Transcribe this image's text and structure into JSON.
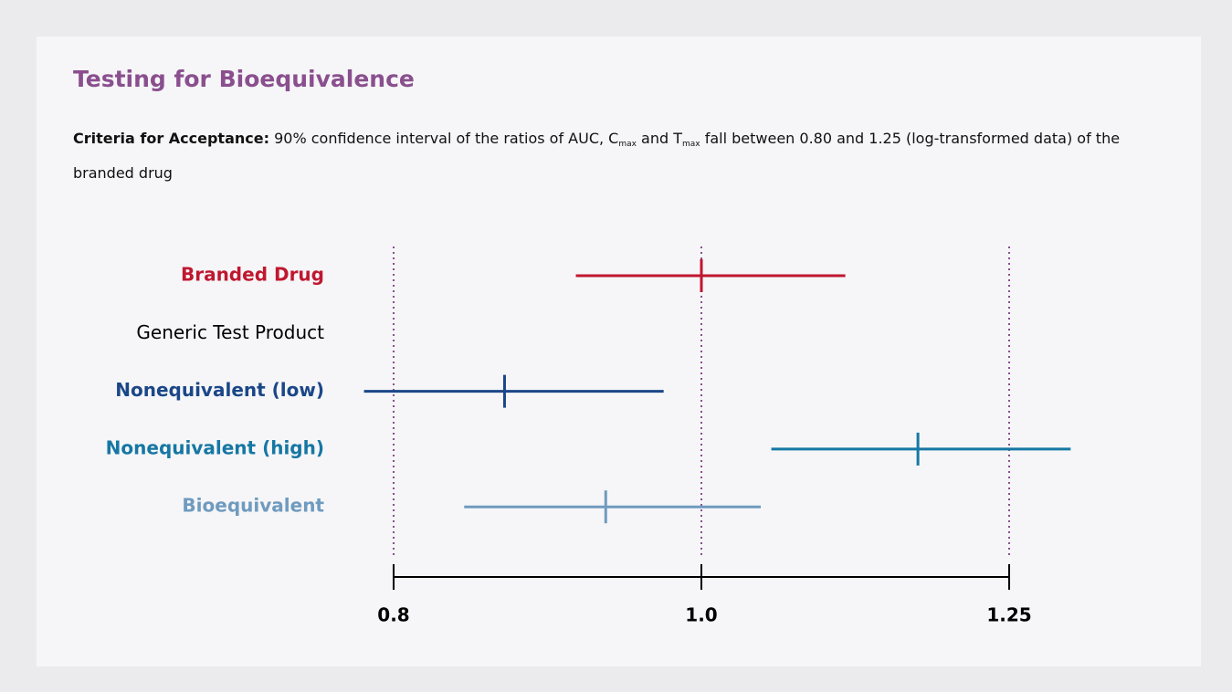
{
  "chart_data": {
    "type": "interval",
    "title": "Testing for Bioequivalence",
    "subtitle_bold": "Criteria for Acceptance:",
    "subtitle": [
      "90% confidence interval of the ratios of AUC, C",
      "max",
      " and T",
      "max",
      " fall between 0.80 and 1.25 (log-transformed data) of the branded drug"
    ],
    "categories": [
      "Branded Drug",
      "Generic Test Product",
      "Nonequivalent (low)",
      "Nonequivalent (high)",
      "Bioequivalent"
    ],
    "colors": [
      "#c0172f",
      "#000000",
      "#1b4788",
      "#1677a3",
      "#6f9bbf"
    ],
    "values": [
      1.0,
      null,
      0.867,
      1.17,
      0.933
    ],
    "low": [
      0.913,
      null,
      0.783,
      1.052,
      0.842
    ],
    "high": [
      1.11,
      null,
      0.973,
      1.307,
      1.044
    ],
    "xlim": [
      0.8,
      1.25
    ],
    "xticks": [
      0.8,
      {
        "value": 1.0,
        "label": "1.0"
      },
      1.25
    ],
    "log_scale": true,
    "grid": true,
    "grid_color": "#8a4f8e"
  }
}
